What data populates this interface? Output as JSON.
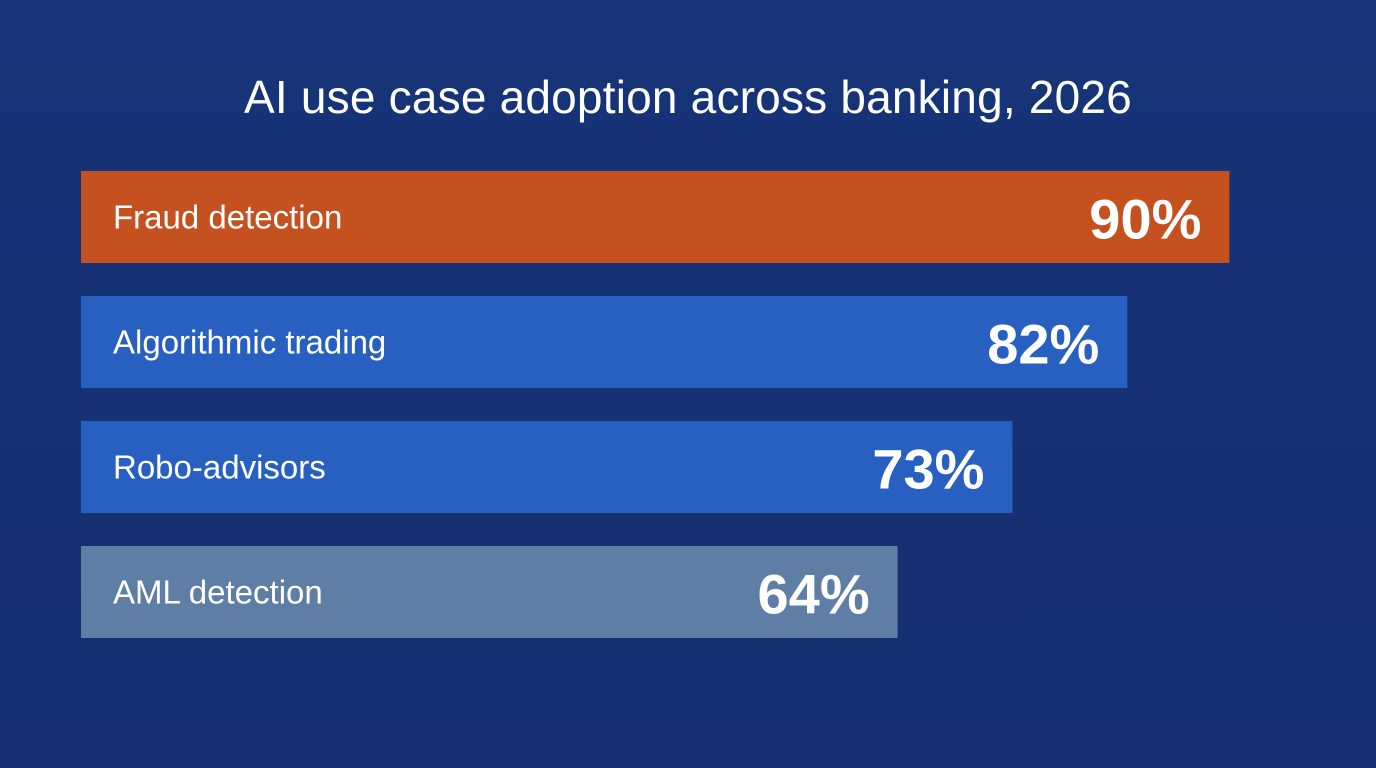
{
  "chart_data": {
    "type": "bar",
    "orientation": "horizontal",
    "title": "AI use case adoption across banking, 2026",
    "categories": [
      "Fraud detection",
      "Algorithmic trading",
      "Robo-advisors",
      "AML detection"
    ],
    "values": [
      90,
      82,
      73,
      64
    ],
    "value_labels": [
      "90%",
      "82%",
      "73%",
      "64%"
    ],
    "unit": "%",
    "bar_colors": [
      "#c4511f",
      "#2760c0",
      "#2760c0",
      "#5f7ea6"
    ],
    "xlim": [
      0,
      100
    ],
    "grid": false,
    "legend": "none"
  },
  "colors": {
    "background": "#163276",
    "text": "#ffffff"
  }
}
